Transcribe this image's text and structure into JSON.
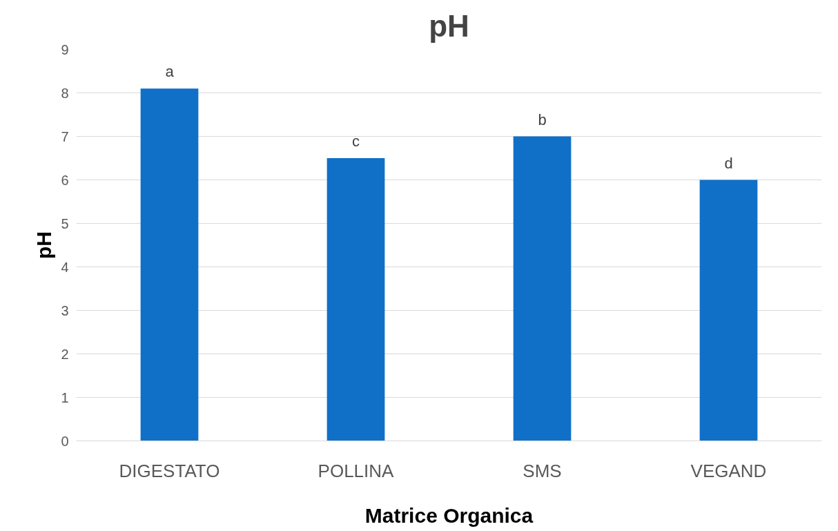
{
  "chart_data": {
    "type": "bar",
    "title": "pH",
    "xlabel": "Matrice Organica",
    "ylabel": "pH",
    "categories": [
      "DIGESTATO",
      "POLLINA",
      "SMS",
      "VEGAND"
    ],
    "values": [
      8.1,
      6.5,
      7.0,
      6.0
    ],
    "color": "#1070c8",
    "ylim": [
      0,
      9
    ],
    "yticks": [
      0,
      1,
      2,
      3,
      4,
      5,
      6,
      7,
      8,
      9
    ],
    "grid": "y",
    "annotations": [
      {
        "text": "a",
        "x": "DIGESTATO",
        "y": 8.1
      },
      {
        "text": "c",
        "x": "POLLINA",
        "y": 6.5
      },
      {
        "text": "b",
        "x": "SMS",
        "y": 7.0
      },
      {
        "text": "d",
        "x": "VEGAND",
        "y": 6.0
      }
    ]
  }
}
